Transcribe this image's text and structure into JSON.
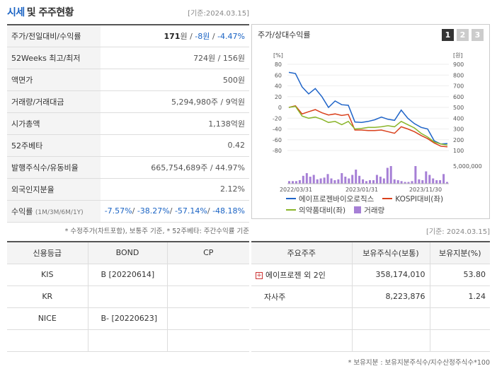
{
  "header": {
    "title_accent": "시세",
    "title_rest": "및 주주현황",
    "base_date": "[기준:2024.03.15]"
  },
  "price_rows": [
    {
      "label": "주가/전일대비/수익률",
      "parts": [
        {
          "text": "171",
          "cls": "bold"
        },
        {
          "text": "원 / ",
          "cls": ""
        },
        {
          "text": "-8원",
          "cls": "neg"
        },
        {
          "text": " / ",
          "cls": ""
        },
        {
          "text": "-4.47%",
          "cls": "neg"
        }
      ]
    },
    {
      "label": "52Weeks 최고/최저",
      "parts": [
        {
          "text": "724원 / 156원",
          "cls": ""
        }
      ]
    },
    {
      "label": "액면가",
      "parts": [
        {
          "text": "500원",
          "cls": ""
        }
      ]
    },
    {
      "label": "거래량/거래대금",
      "parts": [
        {
          "text": "5,294,980주 / 9억원",
          "cls": ""
        }
      ]
    },
    {
      "label": "시가총액",
      "parts": [
        {
          "text": "1,138억원",
          "cls": ""
        }
      ]
    },
    {
      "label": "52주베타",
      "parts": [
        {
          "text": "0.42",
          "cls": ""
        }
      ]
    },
    {
      "label": "발행주식수/유동비율",
      "parts": [
        {
          "text": "665,754,689주 / 44.97%",
          "cls": ""
        }
      ]
    },
    {
      "label": "외국인지분율",
      "parts": [
        {
          "text": "2.12%",
          "cls": ""
        }
      ]
    },
    {
      "label": "수익률",
      "label_small": "(1M/3M/6M/1Y)",
      "parts": [
        {
          "text": "-7.57%",
          "cls": "neg"
        },
        {
          "text": "/ ",
          "cls": ""
        },
        {
          "text": "-38.27%",
          "cls": "neg"
        },
        {
          "text": "/ ",
          "cls": ""
        },
        {
          "text": "-57.14%",
          "cls": "neg"
        },
        {
          "text": "/ ",
          "cls": ""
        },
        {
          "text": "-48.18%",
          "cls": "neg"
        }
      ]
    }
  ],
  "price_footnote": "* 수정주가(차트포함), 보통주 기준, * 52주베타: 주간수익률 기준",
  "chart_panel": {
    "title": "주가/상대수익률",
    "pages": [
      "1",
      "2",
      "3"
    ],
    "active_page": 0
  },
  "chart_data": {
    "type": "line",
    "x_tick_labels": [
      "2022/03/31",
      "2023/01/31",
      "2023/11/30"
    ],
    "left_axis": {
      "unit": "[%]",
      "ticks": [
        80,
        60,
        40,
        20,
        0,
        -20,
        -40,
        -60,
        -80
      ],
      "range": [
        -80,
        80
      ]
    },
    "right_axis": {
      "unit": "[원]",
      "ticks": [
        900,
        800,
        700,
        600,
        500,
        400,
        300,
        200,
        100
      ],
      "range": [
        100,
        900
      ]
    },
    "volume_axis_label": "5,000,000",
    "series": [
      {
        "name": "에이프로젠바이오로직스",
        "color": "#1f64c8",
        "axis": "left",
        "values": [
          65,
          63,
          38,
          25,
          35,
          20,
          0,
          12,
          5,
          4,
          -27,
          -28,
          -26,
          -23,
          -18,
          -22,
          -24,
          -5,
          -20,
          -30,
          -37,
          -40,
          -62,
          -68,
          -67
        ]
      },
      {
        "name": "KOSPI대비(좌)",
        "color": "#d9401c",
        "axis": "left",
        "values": [
          0,
          3,
          -12,
          -8,
          -4,
          -10,
          -14,
          -12,
          -15,
          -13,
          -42,
          -42,
          -43,
          -43,
          -42,
          -45,
          -48,
          -36,
          -40,
          -45,
          -52,
          -58,
          -66,
          -72,
          -73
        ]
      },
      {
        "name": "의약품대비(좌)",
        "color": "#8ab52a",
        "axis": "left",
        "values": [
          0,
          2,
          -16,
          -20,
          -18,
          -22,
          -28,
          -26,
          -32,
          -26,
          -40,
          -39,
          -37,
          -37,
          -36,
          -34,
          -36,
          -26,
          -32,
          -38,
          -48,
          -55,
          -64,
          -68,
          -70
        ]
      }
    ],
    "volume": {
      "name": "거래량",
      "color": "#a67fd6",
      "values": [
        0.3,
        0.3,
        0.3,
        0.4,
        0.9,
        1.2,
        0.8,
        1.0,
        0.5,
        0.6,
        0.7,
        1.1,
        0.6,
        0.4,
        0.5,
        1.2,
        0.8,
        0.6,
        1.0,
        1.6,
        0.9,
        0.5,
        0.3,
        0.4,
        0.4,
        1.0,
        0.8,
        0.6,
        1.8,
        2.0,
        0.5,
        0.4,
        0.3,
        0.2,
        0.2,
        0.3,
        2.0,
        0.5,
        0.4,
        1.4,
        1.0,
        0.6,
        0.4,
        0.4,
        1.1,
        0.2
      ]
    }
  },
  "credit_table": {
    "headers": [
      "신용등급",
      "BOND",
      "CP"
    ],
    "rows": [
      [
        "KIS",
        "B  [20220614]",
        ""
      ],
      [
        "KR",
        "",
        ""
      ],
      [
        "NICE",
        "B-  [20220623]",
        ""
      ],
      [
        "",
        "",
        ""
      ]
    ]
  },
  "holder_table": {
    "base_date": "[기준: 2024.03.15]",
    "headers": [
      "주요주주",
      "보유주식수(보통)",
      "보유지분(%)"
    ],
    "rows": [
      {
        "name": "에이프로젠 외 2인",
        "shares": "358,174,010",
        "pct": "53.80",
        "expandable": true
      },
      {
        "name": "자사주",
        "shares": "8,223,876",
        "pct": "1.24",
        "expandable": false
      },
      {
        "name": "",
        "shares": "",
        "pct": "",
        "expandable": false
      },
      {
        "name": "",
        "shares": "",
        "pct": "",
        "expandable": false
      }
    ],
    "footnote": "* 보유지분 : 보유지분주식수/지수산정주식수*100"
  }
}
